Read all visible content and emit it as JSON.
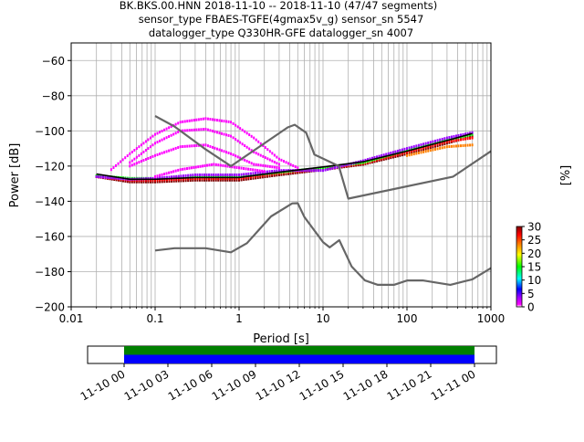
{
  "title_lines": [
    "BK.BKS.00.HNN   2018-11-10 -- 2018-11-10  (47/47 segments)",
    "sensor_type FBAES-TGFE(4gmax5v_g) sensor_sn 5547",
    "datalogger_type Q330HR-GFE datalogger_sn 4007"
  ],
  "chart_data": [
    {
      "type": "heatmap",
      "title": "BK.BKS.00.HNN   2018-11-10 -- 2018-11-10  (47/47 segments)",
      "xlabel": "Period [s]",
      "ylabel": "Power [dB]",
      "x_scale": "log",
      "xlim": [
        0.01,
        1000
      ],
      "ylim": [
        -200,
        -50
      ],
      "x_ticks": [
        {
          "value": 0.01,
          "label": "0.01"
        },
        {
          "value": 0.1,
          "label": "0.1"
        },
        {
          "value": 1,
          "label": "1"
        },
        {
          "value": 10,
          "label": "10"
        },
        {
          "value": 100,
          "label": "100"
        },
        {
          "value": 1000,
          "label": "1000"
        }
      ],
      "y_ticks": [
        {
          "value": -60,
          "label": "−60"
        },
        {
          "value": -80,
          "label": "−80"
        },
        {
          "value": -100,
          "label": "−100"
        },
        {
          "value": -120,
          "label": "−120"
        },
        {
          "value": -140,
          "label": "−140"
        },
        {
          "value": -160,
          "label": "−160"
        },
        {
          "value": -180,
          "label": "−180"
        },
        {
          "value": -200,
          "label": "−200"
        }
      ],
      "grid": true,
      "noise_models": [
        {
          "points": [
            [
              0.1,
              -168
            ],
            [
              0.17,
              -166.7
            ],
            [
              0.4,
              -166.7
            ],
            [
              0.8,
              -169
            ],
            [
              1.24,
              -163.8
            ],
            [
              2.4,
              -148.6
            ],
            [
              4.3,
              -141.2
            ],
            [
              5,
              -141.1
            ],
            [
              6,
              -149
            ],
            [
              10,
              -163.2
            ],
            [
              12,
              -166.2
            ],
            [
              15.6,
              -162.1
            ],
            [
              21.9,
              -177
            ],
            [
              31.6,
              -185
            ],
            [
              45,
              -187.5
            ],
            [
              70,
              -187.5
            ],
            [
              101,
              -185
            ],
            [
              154,
              -185
            ],
            [
              328,
              -187.5
            ],
            [
              600,
              -184.4
            ],
            [
              1000,
              -178
            ]
          ]
        },
        {
          "points": [
            [
              0.1,
              -91.5
            ],
            [
              0.17,
              -97.5
            ],
            [
              0.4,
              -110.5
            ],
            [
              0.8,
              -120
            ],
            [
              3.8,
              -98
            ],
            [
              4.6,
              -96.5
            ],
            [
              6.3,
              -101
            ],
            [
              7.9,
              -113.5
            ],
            [
              15.4,
              -120
            ],
            [
              20,
              -138.5
            ],
            [
              354.8,
              -126
            ],
            [
              1000,
              -111.5
            ]
          ]
        }
      ],
      "density_curves": [
        {
          "color_value": 30,
          "points": [
            [
              0.02,
              -126
            ],
            [
              0.05,
              -129
            ],
            [
              0.1,
              -129
            ],
            [
              0.3,
              -128
            ],
            [
              1,
              -128
            ],
            [
              3,
              -125
            ],
            [
              10,
              -122
            ],
            [
              30,
              -119
            ],
            [
              100,
              -113
            ],
            [
              300,
              -107
            ],
            [
              600,
              -103
            ]
          ]
        },
        {
          "color_value": 25,
          "points": [
            [
              0.02,
              -126
            ],
            [
              0.05,
              -128
            ],
            [
              0.1,
              -128
            ],
            [
              0.3,
              -127
            ],
            [
              1,
              -127
            ],
            [
              3,
              -124
            ],
            [
              10,
              -121.5
            ],
            [
              30,
              -118.5
            ],
            [
              100,
              -112
            ],
            [
              300,
              -106
            ],
            [
              600,
              -104
            ]
          ]
        },
        {
          "color_value": 15,
          "points": [
            [
              0.02,
              -125.5
            ],
            [
              0.05,
              -127
            ],
            [
              0.1,
              -127
            ],
            [
              0.3,
              -126
            ],
            [
              1,
              -126
            ],
            [
              3,
              -123.5
            ],
            [
              10,
              -121
            ],
            [
              30,
              -118
            ],
            [
              100,
              -111
            ],
            [
              300,
              -105
            ],
            [
              600,
              -102
            ]
          ]
        },
        {
          "color_value": 8,
          "points": [
            [
              0.02,
              -126
            ],
            [
              0.05,
              -127.5
            ],
            [
              0.1,
              -127
            ],
            [
              0.3,
              -125
            ],
            [
              1,
              -125
            ],
            [
              3,
              -122.5
            ],
            [
              10,
              -122.5
            ],
            [
              30,
              -117
            ],
            [
              100,
              -110
            ],
            [
              300,
              -104
            ],
            [
              600,
              -101
            ]
          ]
        },
        {
          "color_value": 22,
          "points": [
            [
              100,
              -114
            ],
            [
              300,
              -109
            ],
            [
              600,
              -108
            ]
          ]
        },
        {
          "color_value": 3,
          "points": [
            [
              0.05,
              -120
            ],
            [
              0.1,
              -114
            ],
            [
              0.2,
              -109
            ],
            [
              0.4,
              -108
            ],
            [
              0.8,
              -113
            ],
            [
              1.5,
              -119
            ],
            [
              3,
              -121
            ]
          ]
        },
        {
          "color_value": 1,
          "points": [
            [
              0.03,
              -122
            ],
            [
              0.05,
              -113
            ],
            [
              0.1,
              -102
            ],
            [
              0.2,
              -95
            ],
            [
              0.4,
              -93
            ],
            [
              0.8,
              -95
            ],
            [
              1.5,
              -104
            ],
            [
              3,
              -116
            ],
            [
              5,
              -121
            ]
          ]
        },
        {
          "color_value": 1,
          "points": [
            [
              0.05,
              -118
            ],
            [
              0.1,
              -107
            ],
            [
              0.2,
              -100
            ],
            [
              0.4,
              -99
            ],
            [
              0.8,
              -103
            ],
            [
              1.5,
              -112
            ],
            [
              3,
              -119
            ]
          ]
        },
        {
          "color_value": 4,
          "points": [
            [
              0.1,
              -126
            ],
            [
              0.2,
              -122
            ],
            [
              0.5,
              -119
            ],
            [
              1,
              -121
            ],
            [
              2,
              -123
            ]
          ]
        }
      ],
      "colorbar": {
        "label": "[%]",
        "range": [
          0,
          30
        ],
        "ticks": [
          {
            "value": 0,
            "label": "0"
          },
          {
            "value": 5,
            "label": "5"
          },
          {
            "value": 10,
            "label": "10"
          },
          {
            "value": 15,
            "label": "15"
          },
          {
            "value": 20,
            "label": "20"
          },
          {
            "value": 25,
            "label": "25"
          },
          {
            "value": 30,
            "label": "30"
          }
        ],
        "colors": [
          "#ffffff",
          "#ff00ff",
          "#9900ff",
          "#0000ff",
          "#00ffff",
          "#00ff00",
          "#ffff00",
          "#ff8000",
          "#ff0000",
          "#800000"
        ]
      }
    },
    {
      "type": "timeline",
      "xlim": [
        "2018-11-09T21:30",
        "2018-11-11T01:30"
      ],
      "covered": [
        "2018-11-10T00:00",
        "2018-11-11T00:00"
      ],
      "bands": [
        {
          "color": "#008000",
          "start": "2018-11-10T00:00",
          "end": "2018-11-11T00:00"
        },
        {
          "color": "#0000ff",
          "start": "2018-11-10T00:00",
          "end": "2018-11-11T00:00"
        }
      ],
      "x_ticks": [
        "11-10 00",
        "11-10 03",
        "11-10 06",
        "11-10 09",
        "11-10 12",
        "11-10 15",
        "11-10 18",
        "11-10 21",
        "11-11 00"
      ]
    }
  ]
}
